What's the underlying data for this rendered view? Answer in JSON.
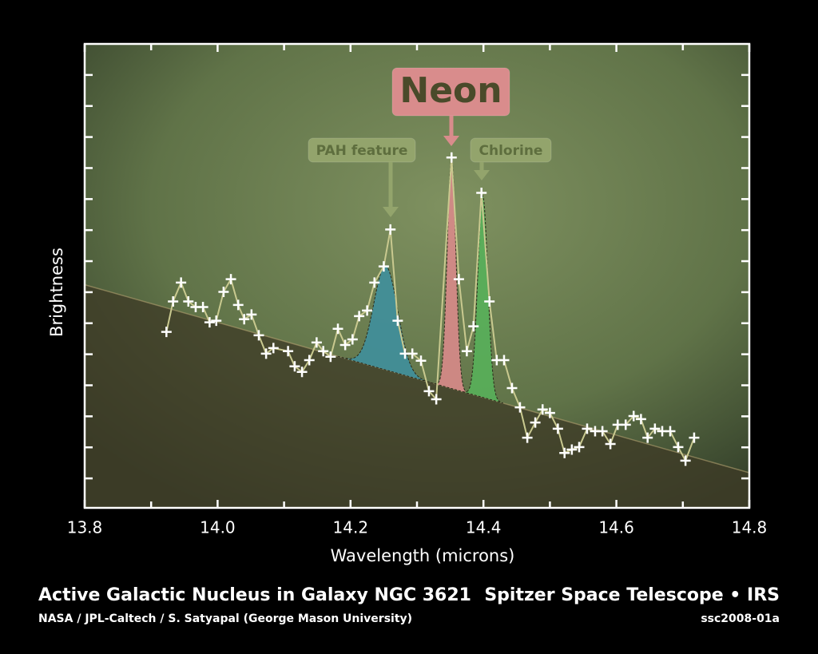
{
  "chart_data": {
    "type": "line",
    "title": "Active Galactic Nucleus in Galaxy NGC 3621",
    "subtitle": "NASA / JPL-Caltech / S. Satyapal (George Mason University)",
    "source": "Spitzer Space Telescope • IRS",
    "image_id": "ssc2008-01a",
    "xlabel": "Wavelength (microns)",
    "ylabel": "Brightness",
    "xlim": [
      13.8,
      14.8
    ],
    "xticks": [
      13.8,
      {
        "value": 14,
        "label": "14.0"
      },
      14.2,
      14.4,
      14.6,
      14.8
    ],
    "xminorticks": [
      13.9,
      14.1,
      14.3,
      14.5,
      14.7
    ],
    "ylim": [
      0.05,
      15
    ],
    "yticks": [
      1,
      2,
      3,
      4,
      5,
      6,
      7,
      8,
      9,
      10,
      11,
      12,
      13,
      14
    ],
    "line_color": "#c9c98f",
    "marker_color": "#ffffff",
    "x": [
      13.923,
      13.933,
      13.945,
      13.956,
      13.967,
      13.978,
      13.988,
      13.998,
      14.009,
      14.02,
      14.031,
      14.04,
      14.051,
      14.062,
      14.073,
      14.084,
      14.106,
      14.116,
      14.127,
      14.138,
      14.149,
      14.159,
      14.17,
      14.181,
      14.192,
      14.203,
      14.213,
      14.225,
      14.236,
      14.25,
      14.26,
      14.271,
      14.282,
      14.293,
      14.306,
      14.318,
      14.329,
      14.352,
      14.363,
      14.375,
      14.385,
      14.397,
      14.409,
      14.42,
      14.431,
      14.443,
      14.455,
      14.466,
      14.478,
      14.489,
      14.5,
      14.512,
      14.522,
      14.533,
      14.544,
      14.556,
      14.568,
      14.579,
      14.591,
      14.602,
      14.614,
      14.626,
      14.637,
      14.647,
      14.658,
      14.669,
      14.681,
      14.693,
      14.704,
      14.717
    ],
    "values": [
      5.72,
      6.7,
      7.31,
      6.7,
      6.52,
      6.52,
      6.03,
      6.08,
      7.01,
      7.42,
      6.59,
      6.13,
      6.28,
      5.61,
      5.02,
      5.2,
      5.1,
      4.61,
      4.43,
      4.81,
      5.38,
      5.1,
      4.92,
      5.82,
      5.3,
      5.48,
      6.23,
      6.41,
      7.31,
      7.83,
      9.02,
      6.08,
      5.02,
      5.02,
      4.79,
      3.81,
      3.55,
      11.34,
      7.42,
      5.1,
      5.9,
      10.2,
      6.7,
      4.81,
      4.81,
      3.91,
      3.29,
      2.31,
      2.8,
      3.22,
      3.11,
      2.6,
      1.82,
      1.93,
      2.01,
      2.6,
      2.52,
      2.52,
      2.11,
      2.73,
      2.73,
      3.01,
      2.91,
      2.31,
      2.6,
      2.52,
      2.52,
      2.01,
      1.57,
      2.31
    ],
    "continuum": {
      "x": [
        13.8,
        14.8
      ],
      "y": [
        7.24,
        1.18
      ],
      "color": "#b0a070"
    },
    "peaks": [
      {
        "name": "PAH feature",
        "center": 14.253,
        "peak": 7.85,
        "sigma": 0.018,
        "color": "#3f8f9c"
      },
      {
        "name": "Neon",
        "center": 14.352,
        "peak": 11.3,
        "sigma": 0.0065,
        "color": "#d88a8a"
      },
      {
        "name": "Chlorine",
        "center": 14.399,
        "peak": 10.1,
        "sigma": 0.0075,
        "color": "#58b05a"
      }
    ]
  }
}
